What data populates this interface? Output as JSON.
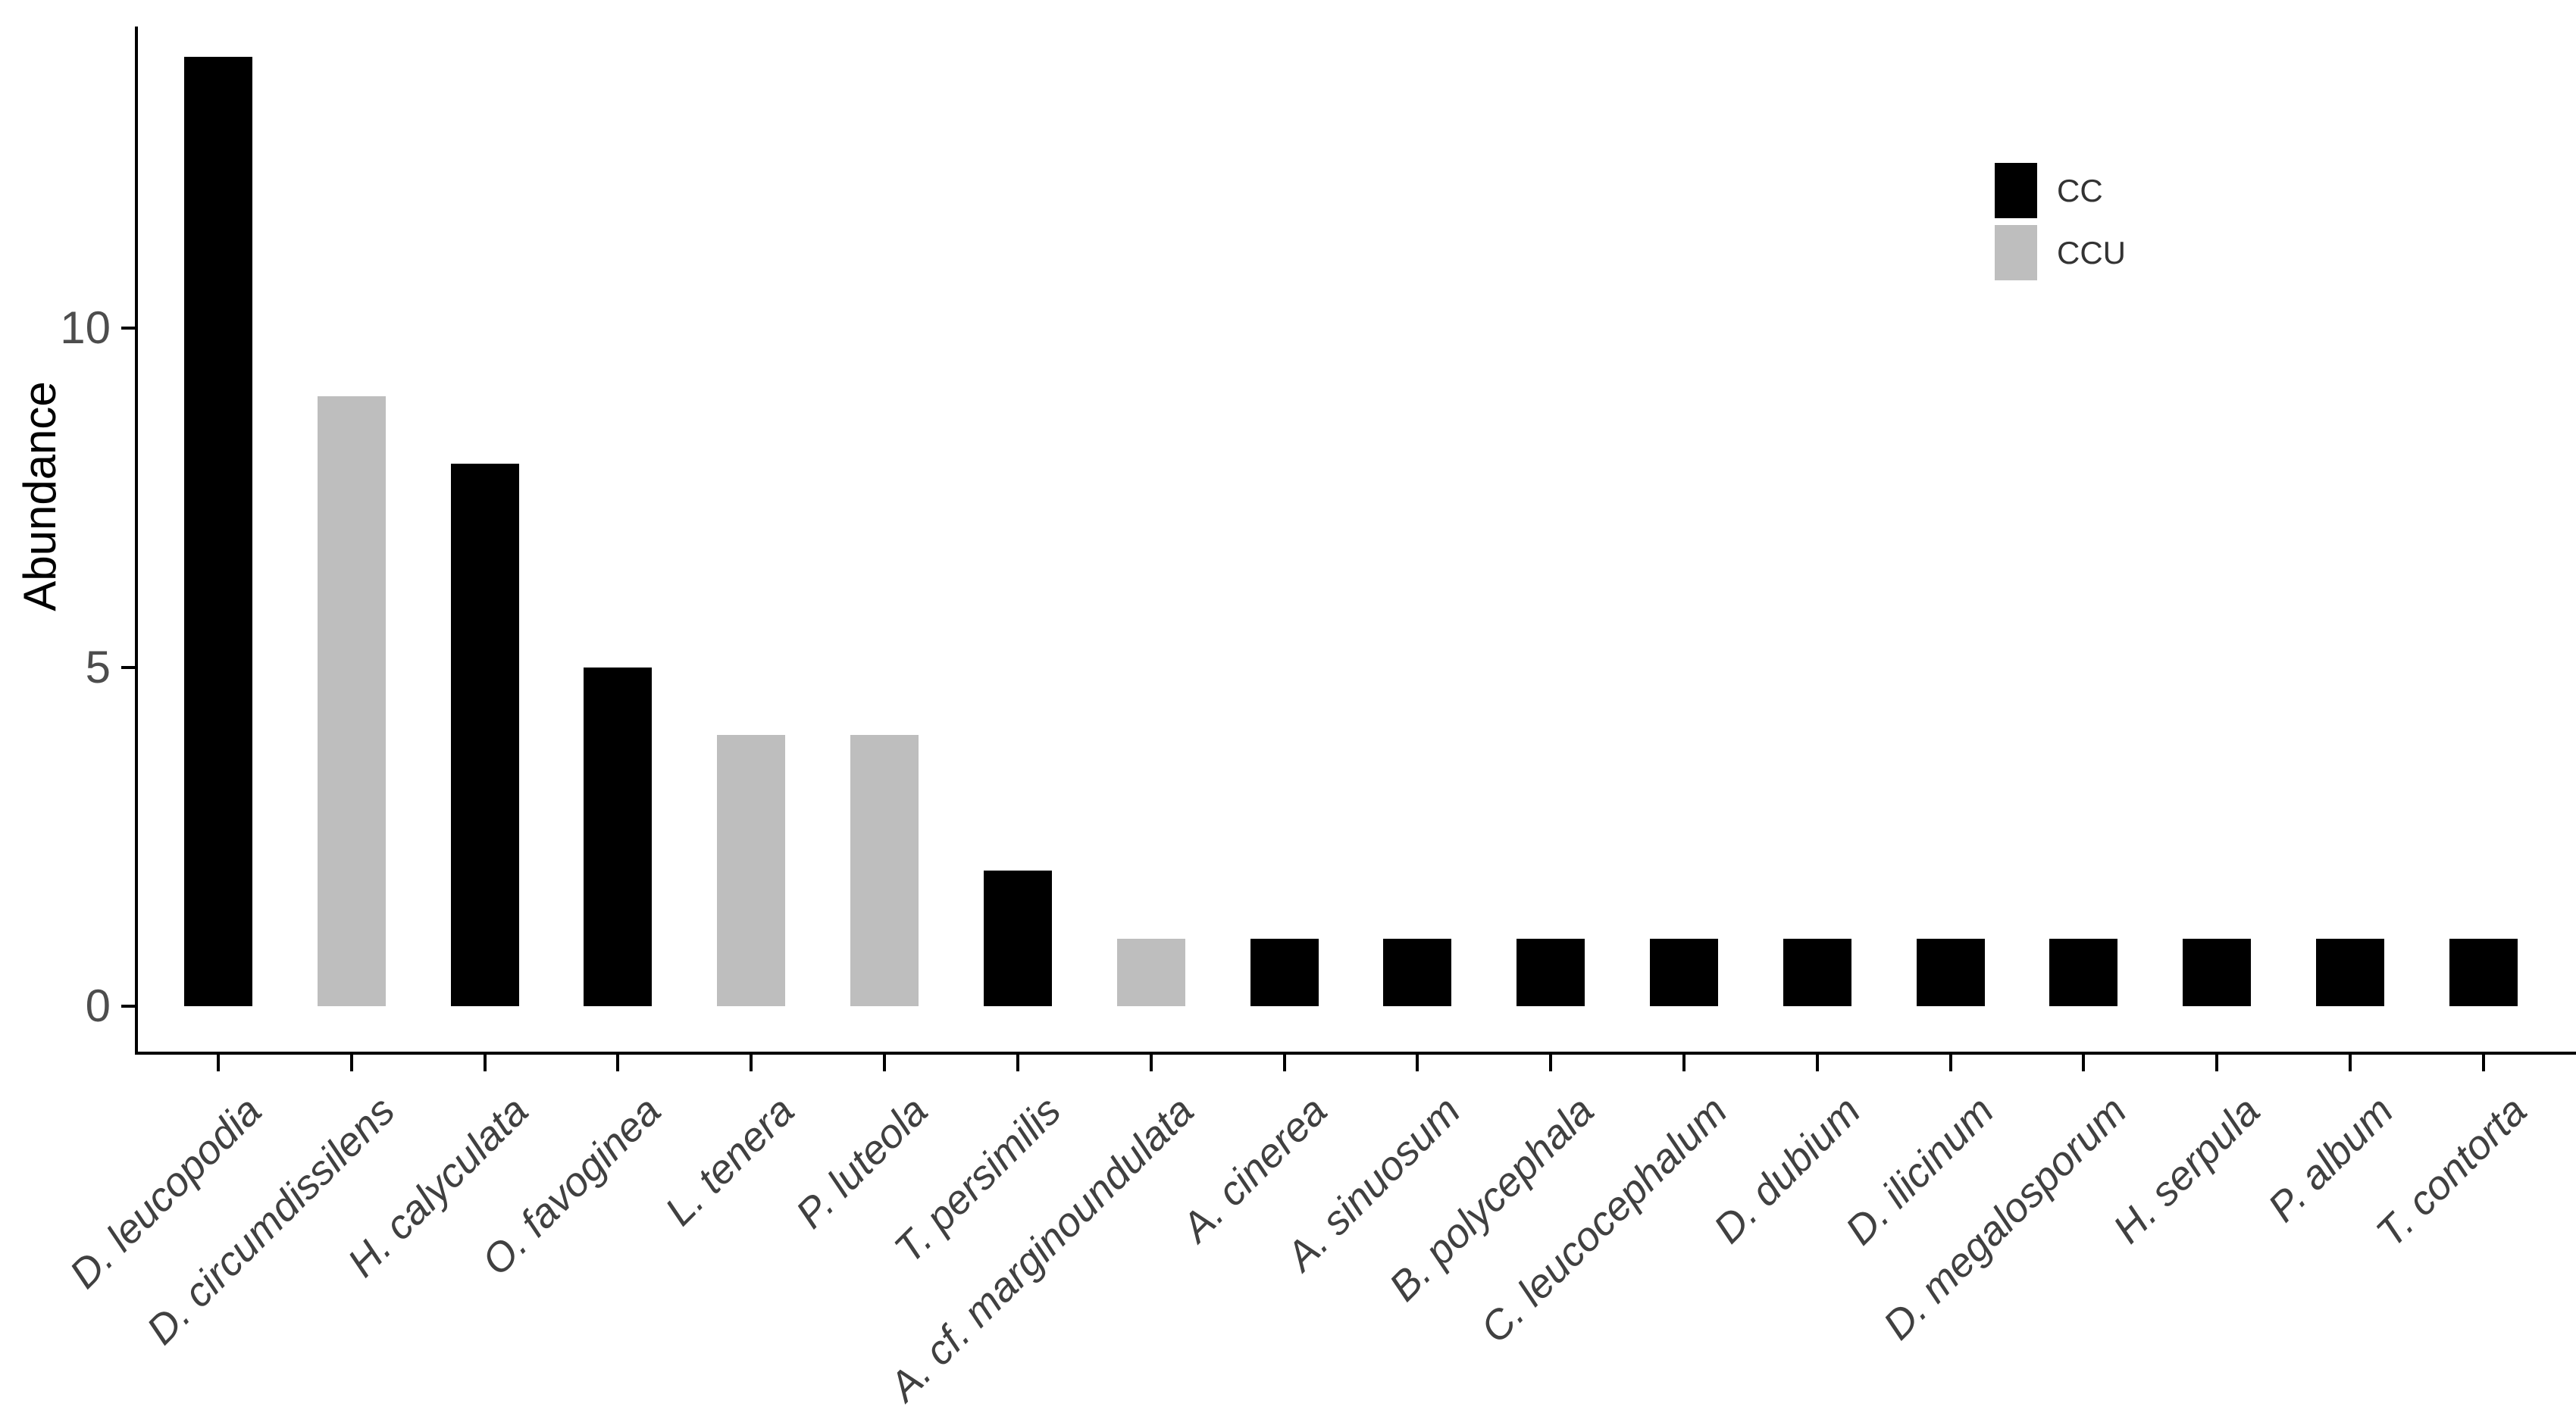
{
  "chart_data": {
    "type": "bar",
    "title": "",
    "xlabel": "",
    "ylabel": "Abundance",
    "ylim": [
      0,
      14
    ],
    "yticks": [
      0,
      5,
      10
    ],
    "grid": "off",
    "legend_position": "top-right-inside",
    "categories": [
      "D. leucopodia",
      "D. circumdissilens",
      "H. calyculata",
      "O. favoginea",
      "L. tenera",
      "P. luteola",
      "T. persimilis",
      "A. cf. marginoundulata",
      "A. cinerea",
      "A. sinuosum",
      "B. polycephala",
      "C. leucocephalum",
      "D. dubium",
      "D. ilicinum",
      "D. megalosporum",
      "H. serpula",
      "P. album",
      "T. contorta"
    ],
    "values": [
      14,
      9,
      8,
      5,
      4,
      4,
      2,
      1,
      1,
      1,
      1,
      1,
      1,
      1,
      1,
      1,
      1,
      1
    ],
    "groups": [
      "CC",
      "CCU",
      "CC",
      "CC",
      "CCU",
      "CCU",
      "CC",
      "CCU",
      "CC",
      "CC",
      "CC",
      "CC",
      "CC",
      "CC",
      "CC",
      "CC",
      "CC",
      "CC"
    ],
    "legend": [
      {
        "label": "CC",
        "color": "#000000"
      },
      {
        "label": "CCU",
        "color": "#bebebe"
      }
    ],
    "colors": {
      "CC": "#000000",
      "CCU": "#bebebe",
      "axis_line": "#000000",
      "tick_text": "#4d4d4d",
      "category_text": "#404040",
      "axis_title_text": "#000000",
      "background": "#ffffff"
    }
  }
}
